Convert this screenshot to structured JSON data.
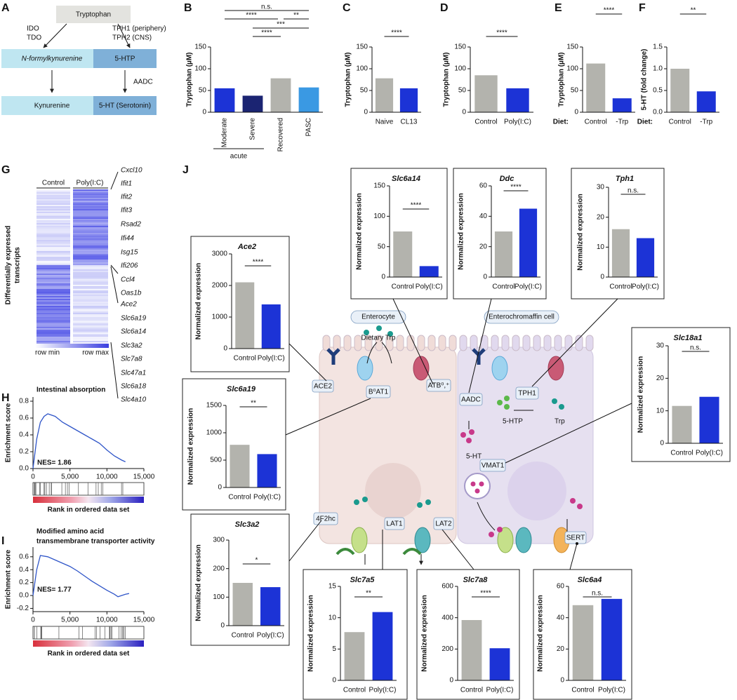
{
  "panel_a": {
    "letter": "A",
    "nodes": [
      "Tryptophan",
      "N-formylkynurenine",
      "Kynurenine",
      "5-HTP",
      "5-HT (Serotonin)"
    ],
    "enzymes_left": [
      "IDO",
      "TDO"
    ],
    "enzymes_right": [
      "TPH1 (periphery)",
      "TPH2 (CNS)"
    ],
    "enzyme_aadc": "AADC"
  },
  "panel_g": {
    "letter": "G",
    "columns": [
      "Control",
      "Poly(I:C)"
    ],
    "ylabel": [
      "Differentially expressed",
      "transcripts"
    ],
    "genes_up": [
      "Cxcl10",
      "Ifit1",
      "Ifit2",
      "Ifit3",
      "Rsad2",
      "Ifi44",
      "Isg15",
      "Ifi206",
      "Ccl4",
      "Oas1b"
    ],
    "genes_down": [
      "Ace2",
      "Slc6a19",
      "Slc6a14",
      "Slc3a2",
      "Slc7a8",
      "Slc47a1",
      "Slc6a18",
      "Slc4a10"
    ],
    "legend": [
      "row min",
      "row max"
    ]
  },
  "panel_j": {
    "letter": "J",
    "labels": [
      "Enterocyte",
      "Enterochromaffin cell",
      "Dietary Trp",
      "ACE2",
      "B⁰AT1",
      "ATB⁰,⁺",
      "AADC",
      "TPH1",
      "5-HTP",
      "Trp",
      "5-HT",
      "VMAT1",
      "4F2hc",
      "LAT1",
      "LAT2",
      "SERT"
    ]
  },
  "chart_data": [
    {
      "type": "bar",
      "letter": "B",
      "ylabel": "Tryptophan (µM)",
      "categories": [
        "Moderate",
        "Severe",
        "Recovered",
        "PASC"
      ],
      "values": [
        55,
        38,
        78,
        57
      ],
      "colors": [
        "#1c33d6",
        "#1b2472",
        "#b3b3ad",
        "#3a99e3"
      ],
      "ylim": [
        0,
        150
      ],
      "yticks": [
        0,
        50,
        100,
        150
      ],
      "significance": [
        {
          "label": "n.s.",
          "from": 0,
          "to": 3
        },
        {
          "label": "****",
          "from": 0,
          "to": 2
        },
        {
          "label": "**",
          "from": 2,
          "to": 3
        },
        {
          "label": "***",
          "from": 1,
          "to": 3
        },
        {
          "label": "****",
          "from": 1,
          "to": 2
        }
      ],
      "group_label": "acute"
    },
    {
      "type": "bar",
      "letter": "C",
      "ylabel": "Tryptophan (µM)",
      "categories": [
        "Naive",
        "CL13"
      ],
      "values": [
        78,
        55
      ],
      "colors": [
        "#b3b3ad",
        "#1c33d6"
      ],
      "ylim": [
        0,
        150
      ],
      "yticks": [
        0,
        50,
        100,
        150
      ],
      "significance": [
        {
          "label": "****",
          "from": 0,
          "to": 1
        }
      ]
    },
    {
      "type": "bar",
      "letter": "D",
      "ylabel": "Tryptophan (µM)",
      "categories": [
        "Control",
        "Poly(I:C)"
      ],
      "values": [
        85,
        55
      ],
      "colors": [
        "#b3b3ad",
        "#1c33d6"
      ],
      "ylim": [
        0,
        150
      ],
      "yticks": [
        0,
        50,
        100,
        150
      ],
      "significance": [
        {
          "label": "****",
          "from": 0,
          "to": 1
        }
      ]
    },
    {
      "type": "bar",
      "letter": "E",
      "ylabel": "Tryptophan (µM)",
      "categories": [
        "Control",
        "-Trp"
      ],
      "values": [
        112,
        32
      ],
      "colors": [
        "#b3b3ad",
        "#1c33d6"
      ],
      "ylim": [
        0,
        150
      ],
      "yticks": [
        0,
        50,
        100,
        150
      ],
      "significance": [
        {
          "label": "****",
          "from": 0,
          "to": 1
        }
      ],
      "condition_label": "Diet:"
    },
    {
      "type": "bar",
      "letter": "F",
      "ylabel": "5-HT (fold change)",
      "categories": [
        "Control",
        "-Trp"
      ],
      "values": [
        1.0,
        0.48
      ],
      "colors": [
        "#b3b3ad",
        "#1c33d6"
      ],
      "ylim": [
        0,
        1.5
      ],
      "yticks": [
        {
          "value": 0,
          "label": "0.0"
        },
        0.5,
        {
          "value": 1,
          "label": "1.0"
        },
        1.5
      ],
      "significance": [
        {
          "label": "**",
          "from": 0,
          "to": 1
        }
      ],
      "condition_label": "Diet:"
    },
    {
      "type": "bar",
      "title": "Slc6a14",
      "ylabel": "Normalized expression",
      "categories": [
        "Control",
        "Poly(I:C)"
      ],
      "values": [
        75,
        18
      ],
      "colors": [
        "#b3b3ad",
        "#1c33d6"
      ],
      "ylim": [
        0,
        150
      ],
      "yticks": [
        0,
        50,
        100,
        150
      ],
      "significance": [
        {
          "label": "****",
          "from": 0,
          "to": 1
        }
      ]
    },
    {
      "type": "bar",
      "title": "Ddc",
      "ylabel": "Normalized expression",
      "categories": [
        "Control",
        "Poly(I:C)"
      ],
      "values": [
        30,
        45
      ],
      "colors": [
        "#b3b3ad",
        "#1c33d6"
      ],
      "ylim": [
        0,
        60
      ],
      "yticks": [
        0,
        20,
        40,
        60
      ],
      "significance": [
        {
          "label": "****",
          "from": 0,
          "to": 1
        }
      ]
    },
    {
      "type": "bar",
      "title": "Tph1",
      "ylabel": "Normalized expression",
      "categories": [
        "Control",
        "Poly(I:C)"
      ],
      "values": [
        16,
        13
      ],
      "colors": [
        "#b3b3ad",
        "#1c33d6"
      ],
      "ylim": [
        0,
        30
      ],
      "yticks": [
        0,
        10,
        20,
        30
      ],
      "significance": [
        {
          "label": "n.s.",
          "from": 0,
          "to": 1
        }
      ]
    },
    {
      "type": "bar",
      "title": "Ace2",
      "ylabel": "Normalized expression",
      "categories": [
        "Control",
        "Poly(I:C)"
      ],
      "values": [
        2100,
        1400
      ],
      "colors": [
        "#b3b3ad",
        "#1c33d6"
      ],
      "ylim": [
        0,
        3000
      ],
      "yticks": [
        0,
        1000,
        2000,
        3000
      ],
      "significance": [
        {
          "label": "****",
          "from": 0,
          "to": 1
        }
      ]
    },
    {
      "type": "bar",
      "title": "Slc18a1",
      "ylabel": "Normalized expression",
      "categories": [
        "Control",
        "Poly(I:C)"
      ],
      "values": [
        11.5,
        14.3
      ],
      "colors": [
        "#b3b3ad",
        "#1c33d6"
      ],
      "ylim": [
        0,
        30
      ],
      "yticks": [
        0,
        10,
        20,
        30
      ],
      "significance": [
        {
          "label": "n.s.",
          "from": 0,
          "to": 1
        }
      ]
    },
    {
      "type": "bar",
      "title": "Slc6a19",
      "ylabel": "Normalized expression",
      "categories": [
        "Control",
        "Poly(I:C)"
      ],
      "values": [
        780,
        610
      ],
      "colors": [
        "#b3b3ad",
        "#1c33d6"
      ],
      "ylim": [
        0,
        1500
      ],
      "yticks": [
        0,
        500,
        1000,
        1500
      ],
      "significance": [
        {
          "label": "**",
          "from": 0,
          "to": 1
        }
      ]
    },
    {
      "type": "bar",
      "title": "Slc3a2",
      "ylabel": "Normalized expression",
      "categories": [
        "Control",
        "Poly(I:C)"
      ],
      "values": [
        150,
        135
      ],
      "colors": [
        "#b3b3ad",
        "#1c33d6"
      ],
      "ylim": [
        0,
        300
      ],
      "yticks": [
        0,
        100,
        200,
        300
      ],
      "significance": [
        {
          "label": "*",
          "from": 0,
          "to": 1
        }
      ]
    },
    {
      "type": "bar",
      "title": "Slc7a5",
      "ylabel": "Normalized expression",
      "categories": [
        "Control",
        "Poly(I:C)"
      ],
      "values": [
        7.7,
        10.9
      ],
      "colors": [
        "#b3b3ad",
        "#1c33d6"
      ],
      "ylim": [
        0,
        15
      ],
      "yticks": [
        0,
        5,
        10,
        15
      ],
      "significance": [
        {
          "label": "**",
          "from": 0,
          "to": 1
        }
      ]
    },
    {
      "type": "bar",
      "title": "Slc7a8",
      "ylabel": "Normalized expression",
      "categories": [
        "Control",
        "Poly(I:C)"
      ],
      "values": [
        385,
        205
      ],
      "colors": [
        "#b3b3ad",
        "#1c33d6"
      ],
      "ylim": [
        0,
        600
      ],
      "yticks": [
        0,
        200,
        400,
        600
      ],
      "significance": [
        {
          "label": "****",
          "from": 0,
          "to": 1
        }
      ]
    },
    {
      "type": "bar",
      "title": "Slc6a4",
      "ylabel": "Normalized expression",
      "categories": [
        "Control",
        "Poly(I:C)"
      ],
      "values": [
        48,
        52
      ],
      "colors": [
        "#b3b3ad",
        "#1c33d6"
      ],
      "ylim": [
        0,
        60
      ],
      "yticks": [
        0,
        20,
        40,
        60
      ],
      "significance": [
        {
          "label": "n.s.",
          "from": 0,
          "to": 1
        }
      ]
    },
    {
      "type": "line",
      "letter": "H",
      "title": [
        "Intestinal absorption"
      ],
      "ylabel": "Enrichment score",
      "xlabel": "Rank in ordered data set",
      "annotation": "NES= 1.86",
      "color": "#2f55c8",
      "x": [
        0,
        500,
        1000,
        1500,
        2000,
        3000,
        4000,
        5000,
        6000,
        7000,
        8000,
        9000,
        10000,
        11000,
        12000,
        12500
      ],
      "values": [
        0,
        0.35,
        0.55,
        0.62,
        0.65,
        0.62,
        0.55,
        0.5,
        0.45,
        0.4,
        0.35,
        0.3,
        0.22,
        0.15,
        0.1,
        0.08
      ],
      "xlim": [
        0,
        15000
      ],
      "xticks": [
        0,
        {
          "value": 5000,
          "label": "5,000"
        },
        {
          "value": 10000,
          "label": "10,000"
        },
        {
          "value": 15000,
          "label": "15,000"
        }
      ],
      "ylim": [
        0,
        0.85
      ],
      "yticks": [
        {
          "value": 0,
          "label": "0.0"
        },
        0.2,
        0.4,
        0.6,
        0.8
      ]
    },
    {
      "type": "line",
      "letter": "I",
      "title": [
        "Modified amino acid",
        "transmembrane transporter activity"
      ],
      "ylabel": "Enrichment score",
      "xlabel": "Rank in ordered data set",
      "annotation": "NES= 1.77",
      "color": "#2f55c8",
      "x": [
        0,
        500,
        1000,
        2000,
        3000,
        4000,
        5000,
        6000,
        7000,
        8000,
        9000,
        10000,
        11000,
        11500,
        12000,
        12500,
        13000
      ],
      "values": [
        0,
        0.4,
        0.62,
        0.6,
        0.55,
        0.5,
        0.45,
        0.38,
        0.3,
        0.22,
        0.15,
        0.08,
        0.02,
        -0.02,
        0,
        0.02,
        0.03
      ],
      "xlim": [
        0,
        15000
      ],
      "xticks": [
        0,
        {
          "value": 5000,
          "label": "5,000"
        },
        {
          "value": 10000,
          "label": "10,000"
        },
        {
          "value": 15000,
          "label": "15,000"
        }
      ],
      "ylim": [
        -0.25,
        0.75
      ],
      "yticks": [
        -0.2,
        {
          "value": 0,
          "label": "0.0"
        },
        0.2,
        0.4,
        0.6
      ]
    }
  ]
}
